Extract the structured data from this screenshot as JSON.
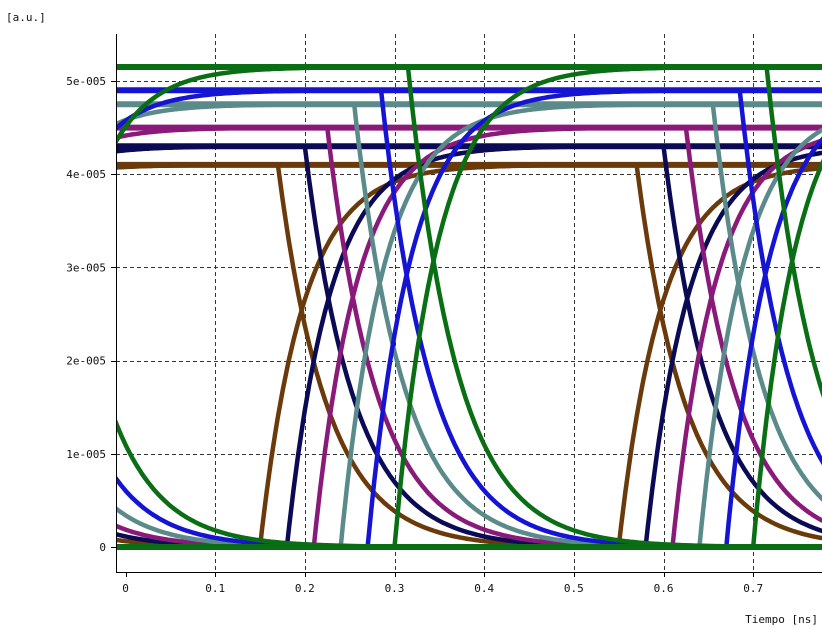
{
  "chart_data": {
    "type": "line",
    "title": "",
    "ylabel": "[a.u.]",
    "xlabel": "Tiempo [ns]",
    "xlim": [
      -0.01,
      0.79
    ],
    "ylim": [
      -2.5e-06,
      5.5e-05
    ],
    "x_ticks": [
      0,
      0.1,
      0.2,
      0.3,
      0.4,
      0.5,
      0.6,
      0.7
    ],
    "x_tick_labels": [
      "0",
      "0.1",
      "0.2",
      "0.3",
      "0.4",
      "0.5",
      "0.6",
      "0.7"
    ],
    "y_ticks": [
      0,
      1e-05,
      2e-05,
      3e-05,
      4e-05,
      5e-05
    ],
    "y_tick_labels": [
      "0",
      "1e-005",
      "2e-005",
      "3e-005",
      "4e-005",
      "5e-005"
    ],
    "grid": true,
    "legend": "none",
    "bit_period_ns": 0.4,
    "series": [
      {
        "color": "#6b3a0a",
        "high_level": 4.1e-05,
        "rise_start_ns": 0.15,
        "fall_start_ns": 0.17
      },
      {
        "color": "#0a0a55",
        "high_level": 4.3e-05,
        "rise_start_ns": 0.18,
        "fall_start_ns": 0.2
      },
      {
        "color": "#8a1a7a",
        "high_level": 4.5e-05,
        "rise_start_ns": 0.21,
        "fall_start_ns": 0.225
      },
      {
        "color": "#5a8a8a",
        "high_level": 4.75e-05,
        "rise_start_ns": 0.24,
        "fall_start_ns": 0.255
      },
      {
        "color": "#1414d2",
        "high_level": 4.9e-05,
        "rise_start_ns": 0.27,
        "fall_start_ns": 0.285
      },
      {
        "color": "#0a6e14",
        "high_level": 5.15e-05,
        "rise_start_ns": 0.3,
        "fall_start_ns": 0.315
      }
    ]
  }
}
